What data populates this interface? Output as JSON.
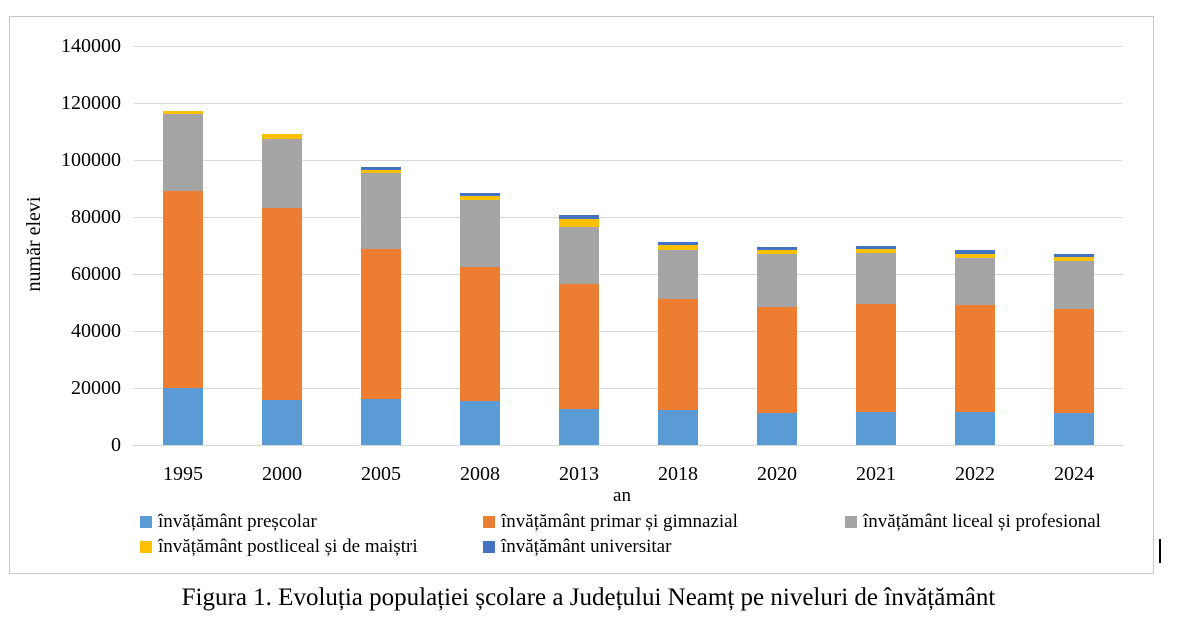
{
  "caption": "Figura 1. Evoluția populației școlare a Județului Neamț pe niveluri de învățământ",
  "colors": {
    "prescolar": "#5B9BD5",
    "primar_gimnazial": "#ED7D31",
    "liceal_profesional": "#A5A5A5",
    "postliceal_maistri": "#FFC000",
    "universitar": "#4472C4",
    "gridline": "#D9D9D9",
    "frame_border": "#C9C9C9",
    "text": "#000000"
  },
  "chart_data": {
    "type": "bar",
    "stacked": true,
    "title": "",
    "xlabel": "an",
    "ylabel": "număr elevi",
    "ylim": [
      0,
      140000
    ],
    "grid": "horizontal",
    "legend_position": "bottom",
    "yticks": [
      0,
      20000,
      40000,
      60000,
      80000,
      100000,
      120000,
      140000
    ],
    "ytick_labels": [
      "0",
      "20000",
      "40000",
      "60000",
      "80000",
      "100000",
      "120000",
      "140000"
    ],
    "categories": [
      "1995",
      "2000",
      "2005",
      "2008",
      "2013",
      "2018",
      "2020",
      "2021",
      "2022",
      "2024"
    ],
    "series": [
      {
        "name": "învățământ preșcolar",
        "color": "#5B9BD5",
        "values": [
          20000,
          15800,
          16300,
          15600,
          12600,
          12200,
          11300,
          11700,
          11700,
          11200
        ]
      },
      {
        "name": "învățământ primar și gimnazial",
        "color": "#ED7D31",
        "values": [
          69000,
          67400,
          52600,
          47000,
          43800,
          38900,
          37300,
          37700,
          37300,
          36500
        ]
      },
      {
        "name": "învățământ liceal și profesional",
        "color": "#A5A5A5",
        "values": [
          27200,
          24200,
          26500,
          23200,
          20000,
          17200,
          18300,
          17900,
          16600,
          16700
        ]
      },
      {
        "name": "învățământ postliceal și de maiștri",
        "color": "#FFC000",
        "values": [
          1100,
          1900,
          1200,
          1500,
          3000,
          1800,
          1600,
          1400,
          1500,
          1600
        ]
      },
      {
        "name": "învățământ universitar",
        "color": "#4472C4",
        "values": [
          0,
          0,
          900,
          1300,
          1400,
          1200,
          1100,
          1200,
          1200,
          1000
        ]
      }
    ]
  }
}
